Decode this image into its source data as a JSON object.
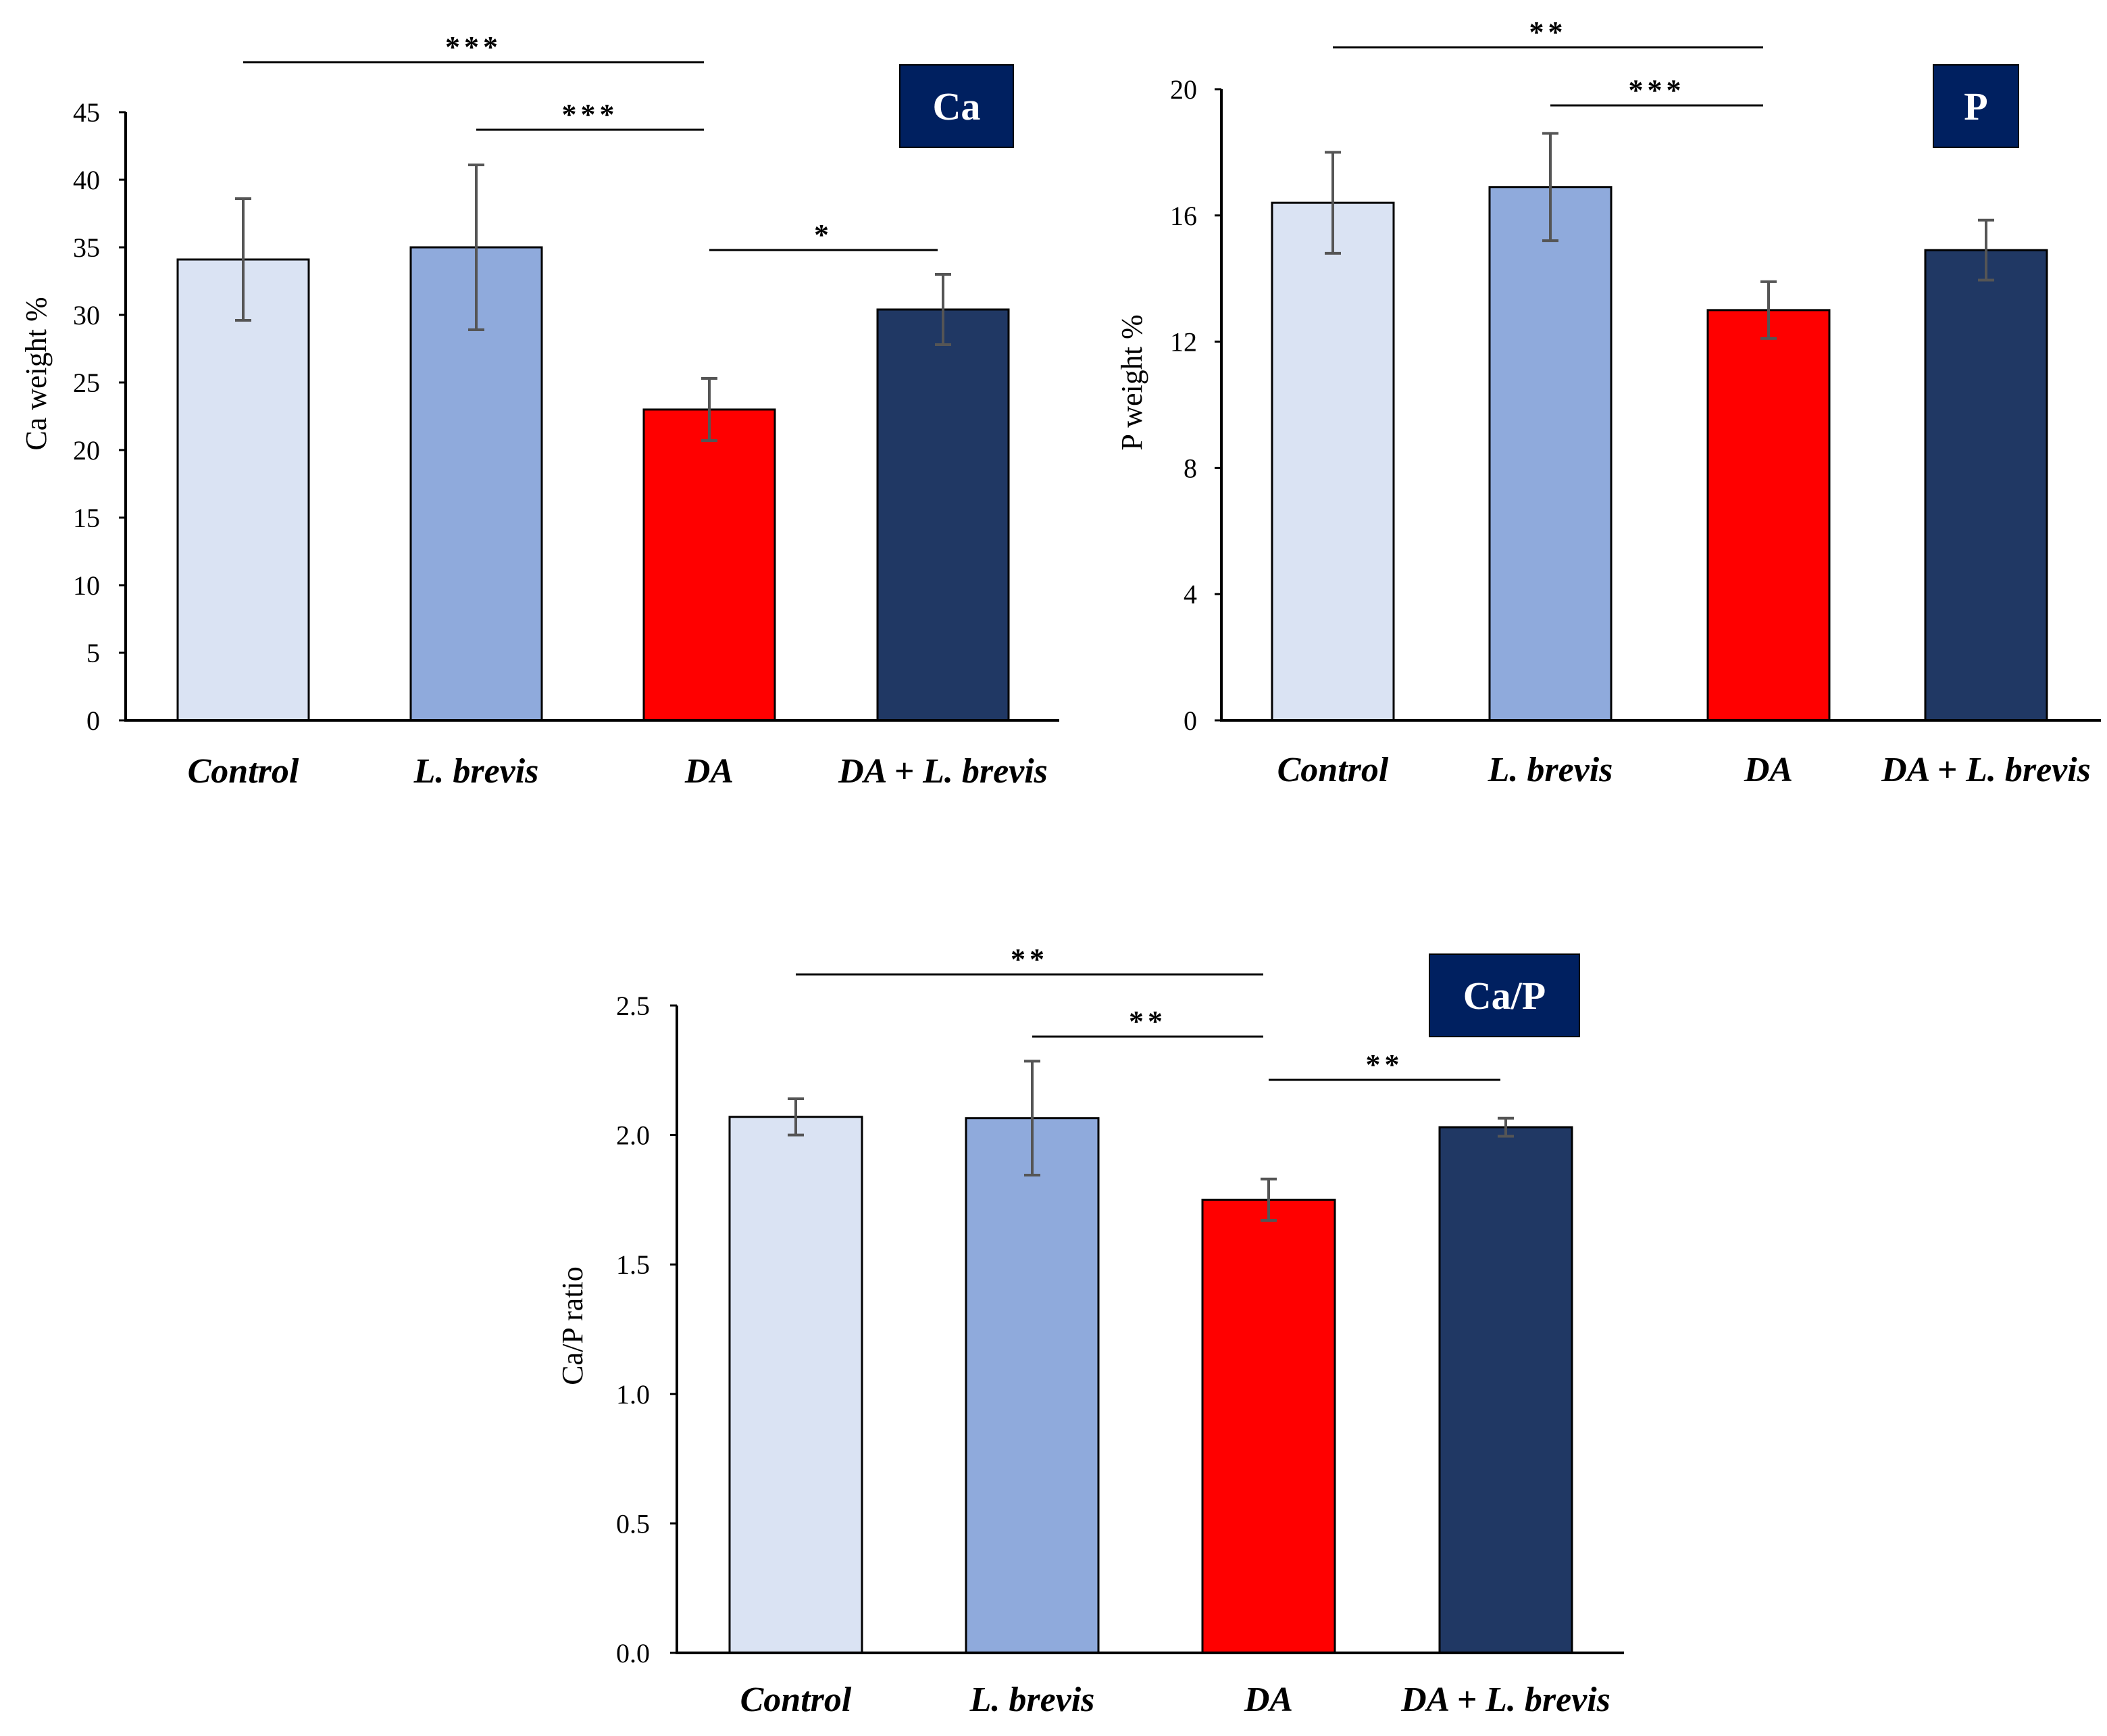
{
  "colors": {
    "control": "#dae3f3",
    "l_brevis": "#8faadc",
    "da": "#ff0000",
    "da_l_brevis": "#203864",
    "badge": "#002060"
  },
  "chart_data": [
    {
      "type": "bar",
      "badge": "Ca",
      "ylabel": "Ca weight %",
      "categories": [
        "Control",
        "L. brevis",
        "DA",
        "DA + L. brevis"
      ],
      "values": [
        34.1,
        35.0,
        23.0,
        30.4
      ],
      "errors": [
        4.5,
        6.1,
        2.3,
        2.6
      ],
      "ylim": [
        0,
        45
      ],
      "yticks": [
        "0",
        "5",
        "10",
        "15",
        "20",
        "25",
        "30",
        "35",
        "40",
        "45"
      ],
      "significance": [
        {
          "from": 0,
          "to": 2,
          "label": "***"
        },
        {
          "from": 1,
          "to": 2,
          "label": "***"
        },
        {
          "from": 2,
          "to": 3,
          "label": "*"
        }
      ]
    },
    {
      "type": "bar",
      "badge": "P",
      "ylabel": "P weight %",
      "categories": [
        "Control",
        "L. brevis",
        "DA",
        "DA + L. brevis"
      ],
      "values": [
        16.4,
        16.9,
        13.0,
        14.9
      ],
      "errors": [
        1.6,
        1.7,
        0.9,
        0.95
      ],
      "ylim": [
        0,
        20
      ],
      "yticks": [
        "0",
        "4",
        "8",
        "12",
        "16",
        "20"
      ],
      "significance": [
        {
          "from": 0,
          "to": 2,
          "label": "**"
        },
        {
          "from": 1,
          "to": 2,
          "label": "***"
        }
      ]
    },
    {
      "type": "bar",
      "badge": "Ca/P",
      "ylabel": "Ca/P ratio",
      "categories": [
        "Control",
        "L. brevis",
        "DA",
        "DA + L. brevis"
      ],
      "values": [
        2.07,
        2.065,
        1.75,
        2.03
      ],
      "errors": [
        0.07,
        0.22,
        0.08,
        0.035
      ],
      "ylim": [
        0,
        2.5
      ],
      "yticks": [
        "0.0",
        "0.5",
        "1.0",
        "1.5",
        "2.0",
        "2.5"
      ],
      "significance": [
        {
          "from": 0,
          "to": 2,
          "label": "**"
        },
        {
          "from": 1,
          "to": 2,
          "label": "**"
        },
        {
          "from": 2,
          "to": 3,
          "label": "**"
        }
      ]
    }
  ]
}
